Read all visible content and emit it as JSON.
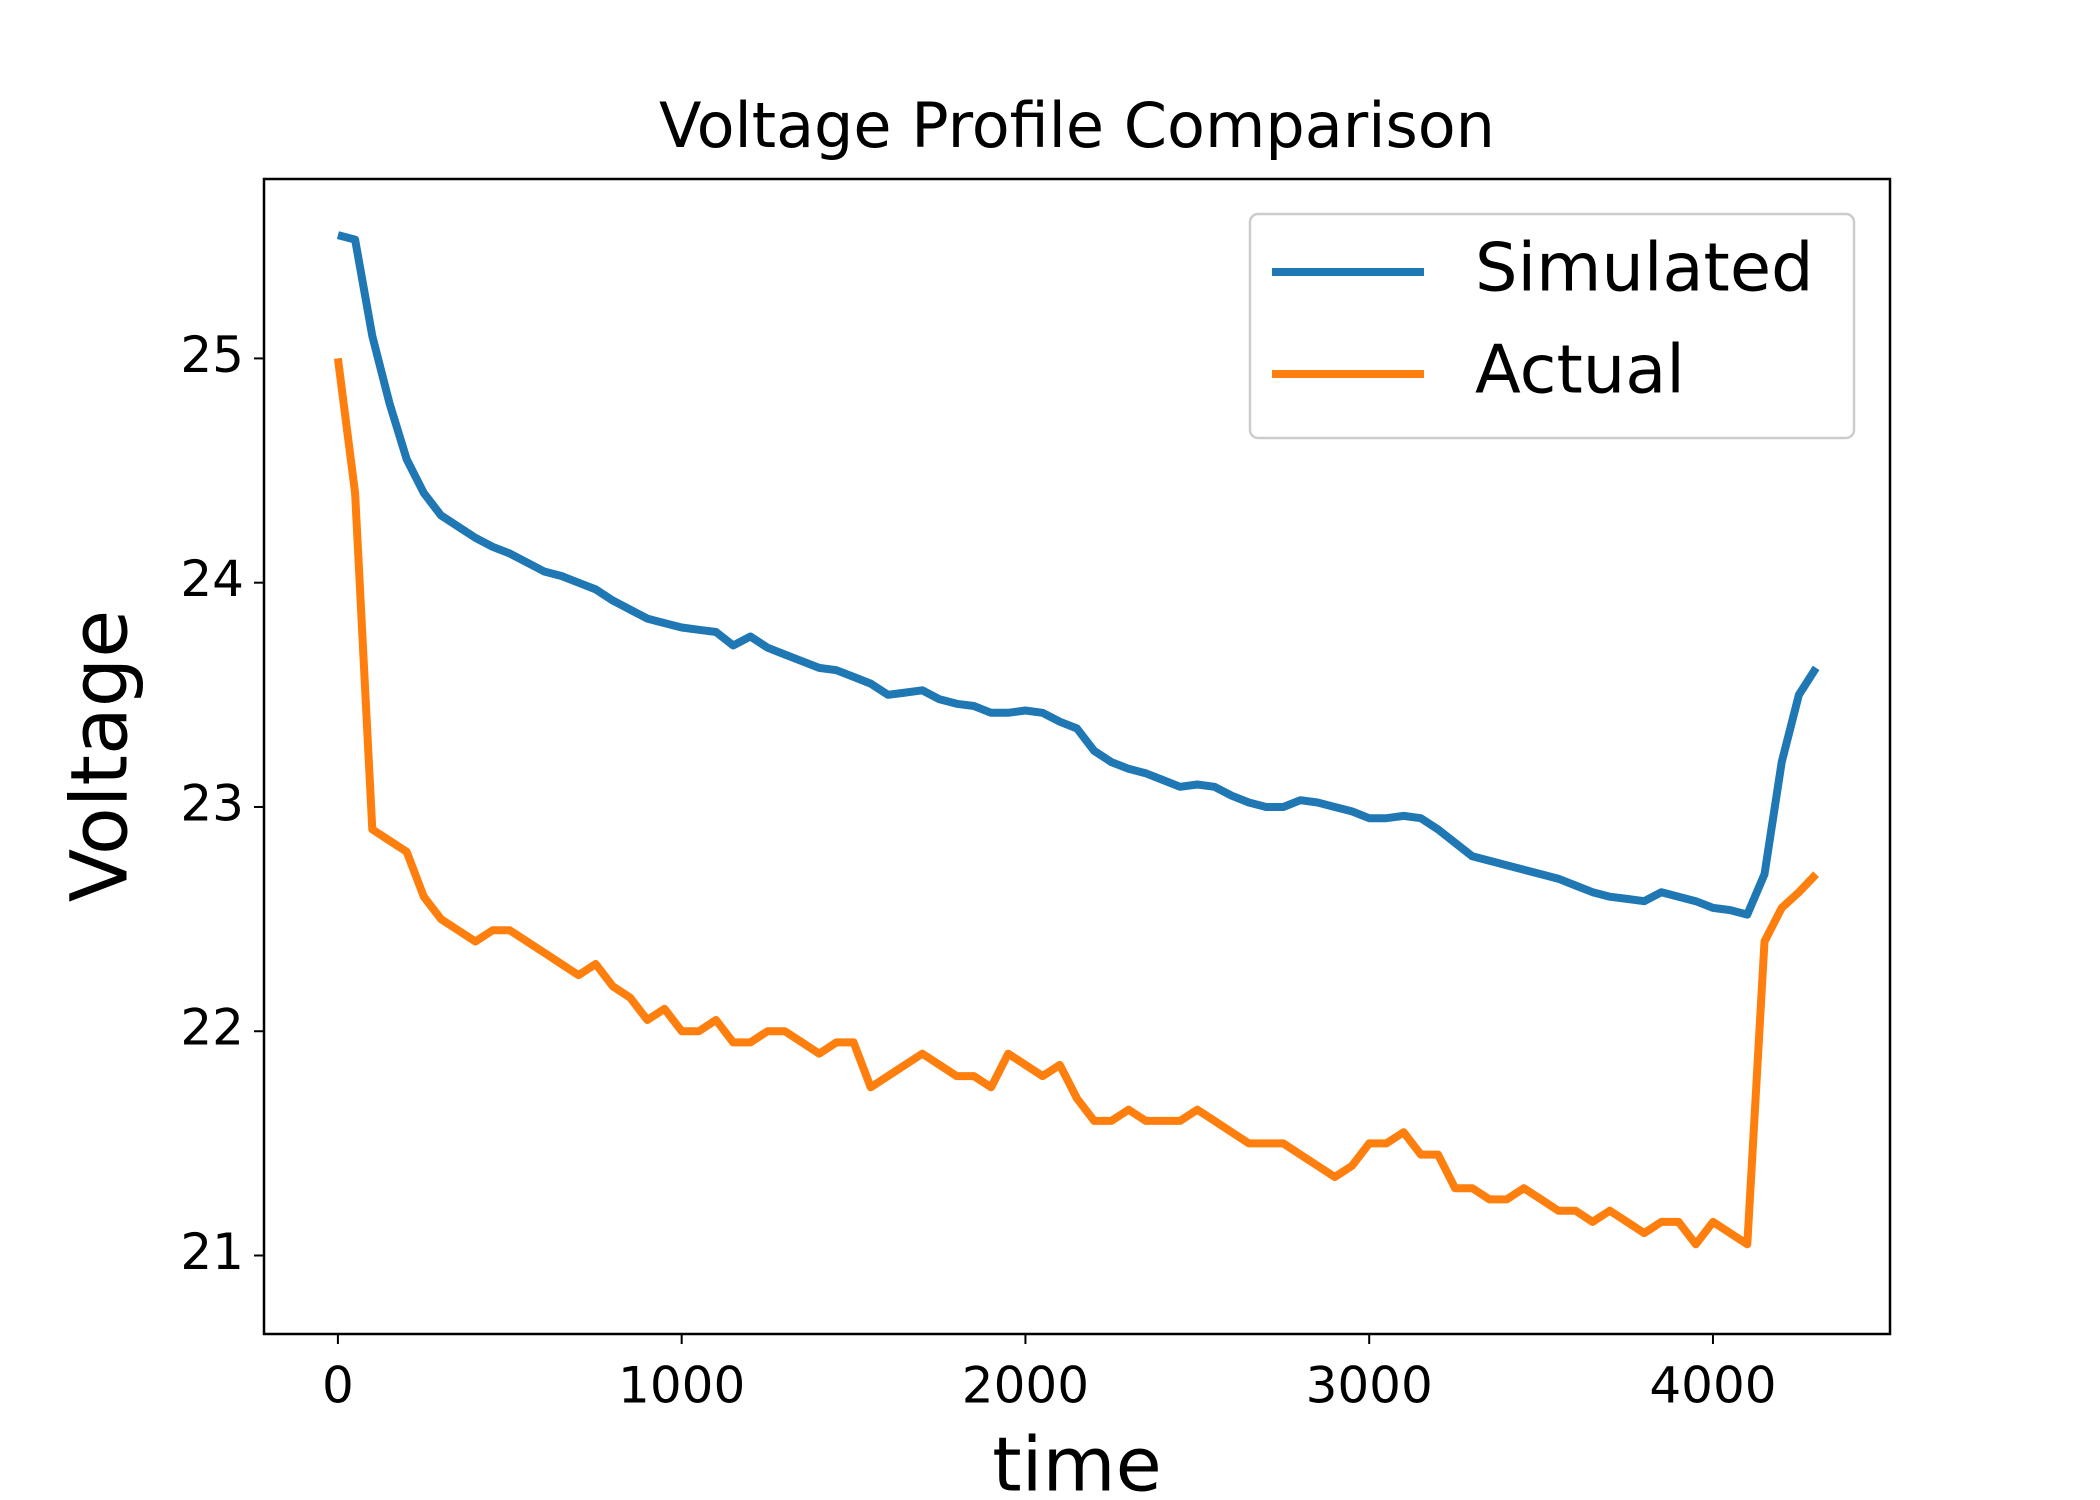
{
  "chart_data": {
    "type": "line",
    "title": "Voltage Profile Comparison",
    "x_label": "time",
    "y_label": "Voltage",
    "x": [
      0,
      50,
      100,
      150,
      200,
      250,
      300,
      350,
      400,
      450,
      500,
      550,
      600,
      650,
      700,
      750,
      800,
      850,
      900,
      950,
      1000,
      1050,
      1100,
      1150,
      1200,
      1250,
      1300,
      1350,
      1400,
      1450,
      1500,
      1550,
      1600,
      1650,
      1700,
      1750,
      1800,
      1850,
      1900,
      1950,
      2000,
      2050,
      2100,
      2150,
      2200,
      2250,
      2300,
      2350,
      2400,
      2450,
      2500,
      2550,
      2600,
      2650,
      2700,
      2750,
      2800,
      2850,
      2900,
      2950,
      3000,
      3050,
      3100,
      3150,
      3200,
      3250,
      3300,
      3350,
      3400,
      3450,
      3500,
      3550,
      3600,
      3650,
      3700,
      3750,
      3800,
      3850,
      3900,
      3950,
      4000,
      4050,
      4100,
      4150,
      4200,
      4250,
      4300
    ],
    "series": [
      {
        "name": "Simulated",
        "color": "#1f77b4",
        "values": [
          25.55,
          25.53,
          25.1,
          24.8,
          24.55,
          24.4,
          24.3,
          24.25,
          24.2,
          24.16,
          24.13,
          24.09,
          24.05,
          24.03,
          24.0,
          23.97,
          23.92,
          23.88,
          23.84,
          23.82,
          23.8,
          23.79,
          23.78,
          23.72,
          23.76,
          23.71,
          23.68,
          23.65,
          23.62,
          23.61,
          23.58,
          23.55,
          23.5,
          23.51,
          23.52,
          23.48,
          23.46,
          23.45,
          23.42,
          23.42,
          23.43,
          23.42,
          23.38,
          23.35,
          23.25,
          23.2,
          23.17,
          23.15,
          23.12,
          23.09,
          23.1,
          23.09,
          23.05,
          23.02,
          23.0,
          23.0,
          23.03,
          23.02,
          23.0,
          22.98,
          22.95,
          22.95,
          22.96,
          22.95,
          22.9,
          22.84,
          22.78,
          22.76,
          22.74,
          22.72,
          22.7,
          22.68,
          22.65,
          22.62,
          22.6,
          22.59,
          22.58,
          22.62,
          22.6,
          22.58,
          22.55,
          22.54,
          22.52,
          22.7,
          23.2,
          23.5,
          23.62
        ]
      },
      {
        "name": "Actual",
        "color": "#ff7f0e",
        "values": [
          25.0,
          24.4,
          22.9,
          22.85,
          22.8,
          22.6,
          22.5,
          22.45,
          22.4,
          22.45,
          22.45,
          22.4,
          22.35,
          22.3,
          22.25,
          22.3,
          22.2,
          22.15,
          22.05,
          22.1,
          22.0,
          22.0,
          22.05,
          21.95,
          21.95,
          22.0,
          22.0,
          21.95,
          21.9,
          21.95,
          21.95,
          21.75,
          21.8,
          21.85,
          21.9,
          21.85,
          21.8,
          21.8,
          21.75,
          21.9,
          21.85,
          21.8,
          21.85,
          21.7,
          21.6,
          21.6,
          21.65,
          21.6,
          21.6,
          21.6,
          21.65,
          21.6,
          21.55,
          21.5,
          21.5,
          21.5,
          21.45,
          21.4,
          21.35,
          21.4,
          21.5,
          21.5,
          21.55,
          21.45,
          21.45,
          21.3,
          21.3,
          21.25,
          21.25,
          21.3,
          21.25,
          21.2,
          21.2,
          21.15,
          21.2,
          21.15,
          21.1,
          21.15,
          21.15,
          21.05,
          21.15,
          21.1,
          21.05,
          22.4,
          22.55,
          22.62,
          22.7
        ]
      }
    ],
    "xlim": [
      -215,
      4515
    ],
    "ylim": [
      20.65,
      25.8
    ],
    "xticks": [
      0,
      1000,
      2000,
      3000,
      4000
    ],
    "yticks": [
      21,
      22,
      23,
      24,
      25
    ],
    "grid": false,
    "legend": "upper right"
  }
}
